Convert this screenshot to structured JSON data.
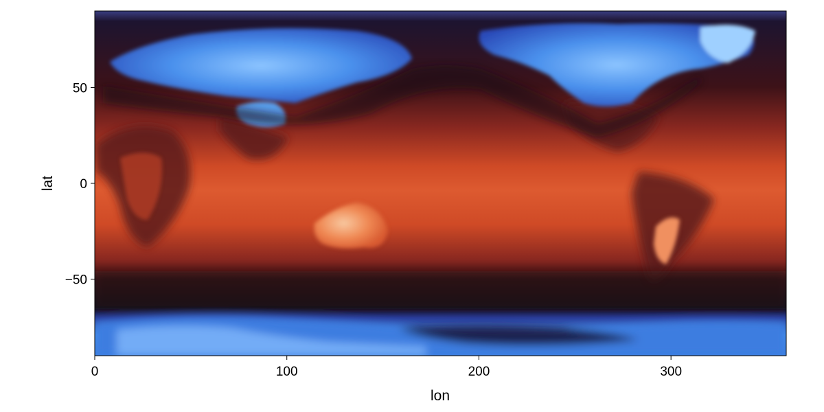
{
  "chart_data": {
    "type": "heatmap",
    "title": "",
    "xlabel": "lon",
    "ylabel": "lat",
    "xlim": [
      0,
      360
    ],
    "ylim": [
      -90,
      90
    ],
    "xticks": [
      {
        "value": 0,
        "label": "0"
      },
      {
        "value": 100,
        "label": "100"
      },
      {
        "value": 200,
        "label": "200"
      },
      {
        "value": 300,
        "label": "300"
      }
    ],
    "yticks": [
      {
        "value": 50,
        "label": "50"
      },
      {
        "value": 0,
        "label": "0"
      },
      {
        "value": -50,
        "label": "−50"
      }
    ],
    "grid": false,
    "legend": "none",
    "colormap": [
      "#3f8bf0",
      "#1e2a78",
      "#14101c",
      "#5a1418",
      "#a8301f",
      "#e0502a",
      "#f07a4a",
      "#f6b890"
    ],
    "field": "global surface temperature map (cold = blue, warm = orange)"
  }
}
